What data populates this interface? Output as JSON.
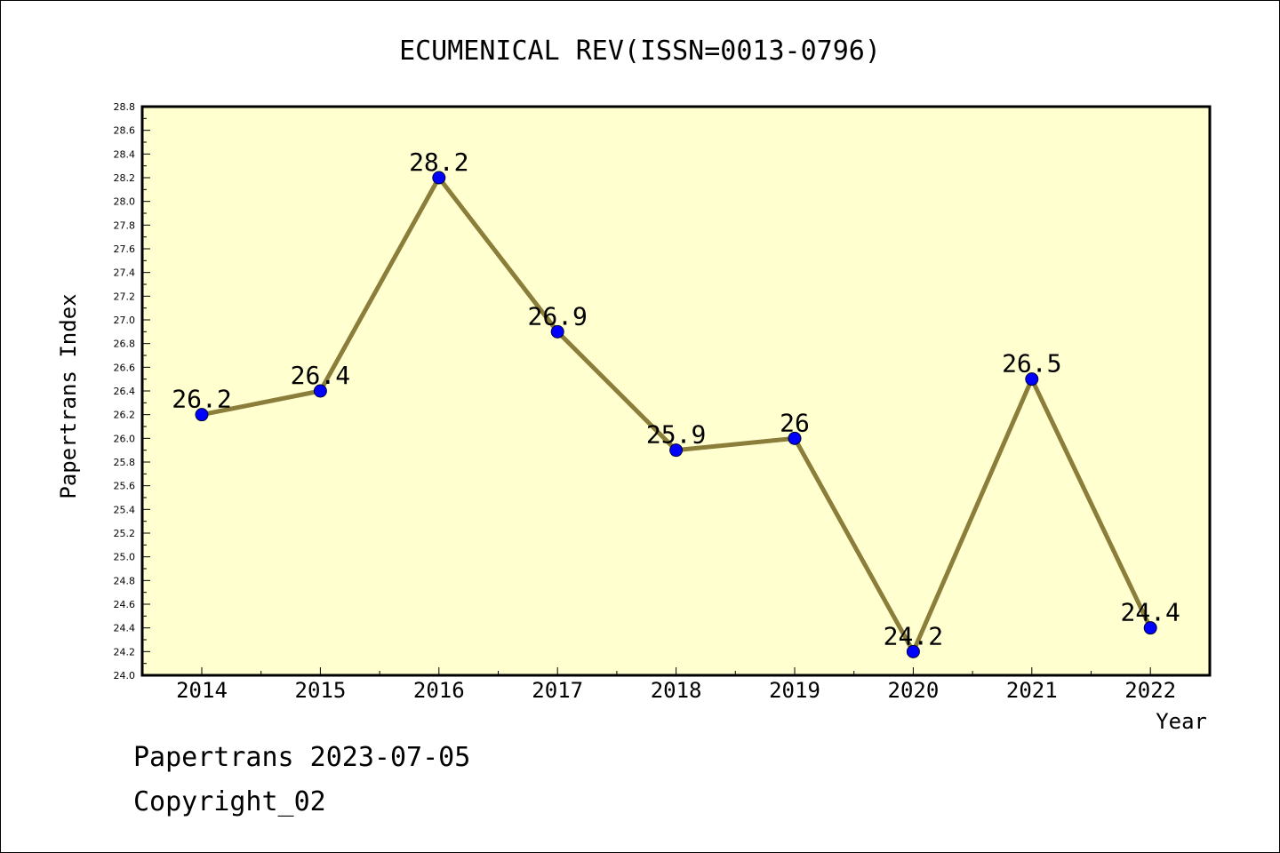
{
  "chart_data": {
    "type": "line",
    "title": "ECUMENICAL REV(ISSN=0013-0796)",
    "xlabel": "Year",
    "ylabel": "Papertrans Index",
    "categories": [
      "2014",
      "2015",
      "2016",
      "2017",
      "2018",
      "2019",
      "2020",
      "2021",
      "2022"
    ],
    "series": [
      {
        "values": [
          26.2,
          26.4,
          28.2,
          26.9,
          25.9,
          26.0,
          24.2,
          26.5,
          24.4
        ],
        "labels": [
          "26.2",
          "26.4",
          "28.2",
          "26.9",
          "25.9",
          "26",
          "24.2",
          "26.5",
          "24.4"
        ]
      }
    ],
    "ylim": [
      24.0,
      28.8
    ],
    "y_ticks": [
      "24.0",
      "24.2",
      "24.4",
      "24.6",
      "24.8",
      "25.0",
      "25.2",
      "25.4",
      "25.6",
      "25.8",
      "26.0",
      "26.2",
      "26.4",
      "26.6",
      "26.8",
      "27.0",
      "27.2",
      "27.4",
      "27.6",
      "27.8",
      "28.0",
      "28.2",
      "28.4",
      "28.6",
      "28.8"
    ],
    "grid": false,
    "colors": {
      "plot_background": "#ffffd0",
      "line": "#8b7d3a",
      "marker": "#0000ff",
      "axis": "#000000"
    }
  },
  "footer": {
    "line1": "Papertrans 2023-07-05",
    "line2": "Copyright_02"
  }
}
